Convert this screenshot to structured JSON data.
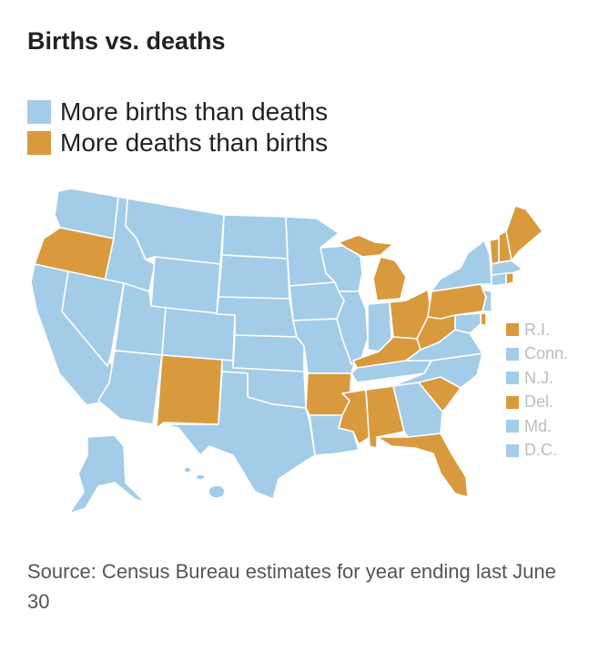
{
  "title": "Births vs. deaths",
  "colors": {
    "births": "#a3cce8",
    "deaths": "#d99a3e",
    "border": "#ffffff"
  },
  "legend": [
    {
      "key": "births",
      "label": "More births than deaths"
    },
    {
      "key": "deaths",
      "label": "More deaths than births"
    }
  ],
  "small_states_legend": [
    {
      "label": "R.I.",
      "key": "deaths"
    },
    {
      "label": "Conn.",
      "key": "births"
    },
    {
      "label": "N.J.",
      "key": "births"
    },
    {
      "label": "Del.",
      "key": "deaths"
    },
    {
      "label": "Md.",
      "key": "births"
    },
    {
      "label": "D.C.",
      "key": "births"
    }
  ],
  "states_more_deaths": [
    "Oregon",
    "New Mexico",
    "Arkansas",
    "Mississippi",
    "Alabama",
    "Florida",
    "South Carolina",
    "West Virginia",
    "Kentucky",
    "Ohio",
    "Michigan",
    "Pennsylvania",
    "Vermont",
    "New Hampshire",
    "Maine",
    "Rhode Island",
    "Delaware"
  ],
  "source": "Source: Census Bureau estimates for year ending last June 30"
}
